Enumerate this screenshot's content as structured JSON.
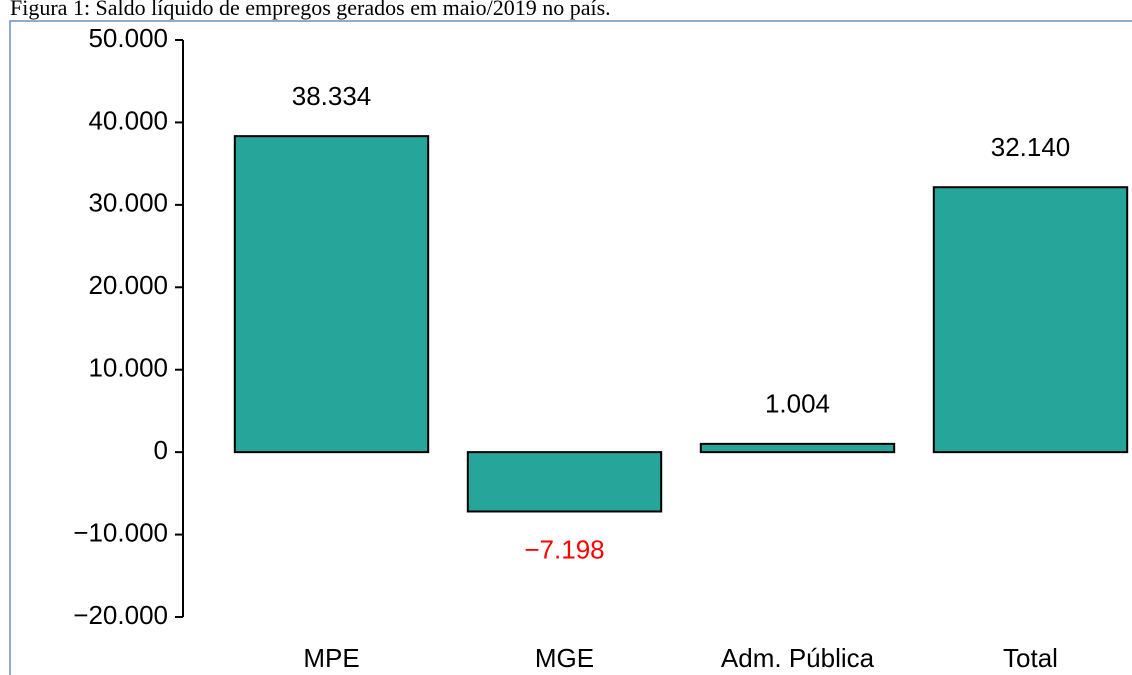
{
  "chart_data": {
    "type": "bar",
    "title": "Figura 1: Saldo líquido de empregos gerados em maio/2019 no país.",
    "categories": [
      "MPE",
      "MGE",
      "Adm. Pública",
      "Total"
    ],
    "values": [
      38334,
      -7198,
      1004,
      32140
    ],
    "value_labels": [
      "38.334",
      "−7.198",
      "1.004",
      "32.140"
    ],
    "value_label_colors": [
      "#000000",
      "#ff0000",
      "#000000",
      "#000000"
    ],
    "color": "#26a69a",
    "ylim": [
      -20000,
      50000
    ],
    "yticks": [
      {
        "value": -20000,
        "label": "−20.000"
      },
      {
        "value": -10000,
        "label": "−10.000"
      },
      0,
      {
        "value": 10000,
        "label": "10.000"
      },
      {
        "value": 20000,
        "label": "20.000"
      },
      {
        "value": 30000,
        "label": "30.000"
      },
      {
        "value": 40000,
        "label": "40.000"
      },
      {
        "value": 50000,
        "label": "50.000"
      }
    ],
    "grid": false
  }
}
